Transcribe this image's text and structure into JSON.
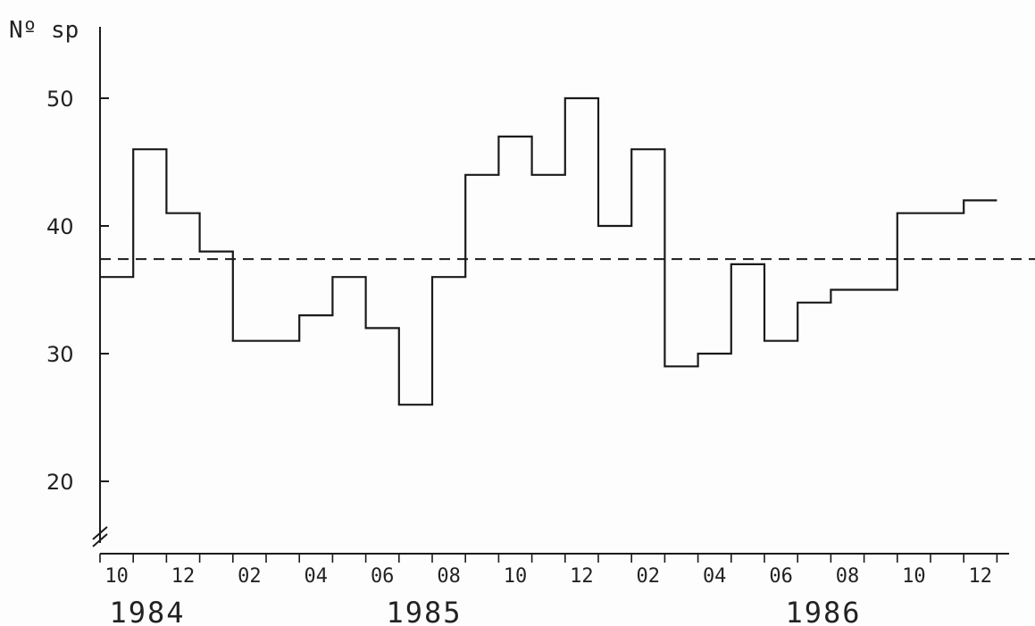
{
  "chart_data": {
    "type": "line",
    "step": true,
    "ylabel": "Nº sp",
    "xlabel": "",
    "ylim": [
      15,
      55
    ],
    "yticks": [
      20,
      30,
      40,
      50
    ],
    "y_axis_break": true,
    "grid": false,
    "legend": "none",
    "x_tick_labels": [
      "10",
      "12",
      "02",
      "04",
      "06",
      "08",
      "10",
      "12",
      "02",
      "04",
      "06",
      "08",
      "10",
      "12"
    ],
    "year_labels": [
      "1984",
      "1985",
      "1986"
    ],
    "x_start": "1984-10",
    "series": [
      {
        "months": [
          "1984-10",
          "1984-11",
          "1984-12",
          "1985-01",
          "1985-02",
          "1985-03",
          "1985-04",
          "1985-05",
          "1985-06",
          "1985-07",
          "1985-08",
          "1985-09",
          "1985-10",
          "1985-11",
          "1985-12",
          "1986-01",
          "1986-02",
          "1986-03",
          "1986-04",
          "1986-05",
          "1986-06",
          "1986-07",
          "1986-08",
          "1986-09",
          "1986-10",
          "1986-11",
          "1986-12"
        ],
        "values": [
          36,
          46,
          41,
          38,
          31,
          31,
          33,
          36,
          32,
          26,
          36,
          44,
          47,
          44,
          50,
          40,
          46,
          29,
          30,
          37,
          31,
          34,
          35,
          35,
          41,
          41,
          42
        ]
      }
    ],
    "reference_line": {
      "value": 37.4,
      "style": "dashed"
    }
  }
}
